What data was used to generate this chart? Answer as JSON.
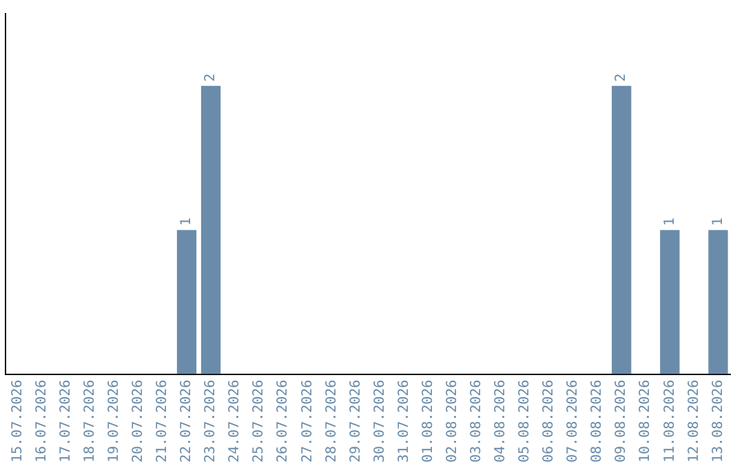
{
  "chart_data": {
    "type": "bar",
    "categories": [
      "15.07.2026",
      "16.07.2026",
      "17.07.2026",
      "18.07.2026",
      "19.07.2026",
      "20.07.2026",
      "21.07.2026",
      "22.07.2026",
      "23.07.2026",
      "24.07.2026",
      "25.07.2026",
      "26.07.2026",
      "27.07.2026",
      "28.07.2026",
      "29.07.2026",
      "30.07.2026",
      "31.07.2026",
      "01.08.2026",
      "02.08.2026",
      "03.08.2026",
      "04.08.2026",
      "05.08.2026",
      "06.08.2026",
      "07.08.2026",
      "08.08.2026",
      "09.08.2026",
      "10.08.2026",
      "11.08.2026",
      "12.08.2026",
      "13.08.2026"
    ],
    "values": [
      0,
      0,
      0,
      0,
      0,
      0,
      0,
      1,
      2,
      0,
      0,
      0,
      0,
      0,
      0,
      0,
      0,
      0,
      0,
      0,
      0,
      0,
      0,
      0,
      0,
      2,
      0,
      1,
      0,
      1
    ],
    "value_labels": [
      null,
      null,
      null,
      null,
      null,
      null,
      null,
      "1",
      "2",
      null,
      null,
      null,
      null,
      null,
      null,
      null,
      null,
      null,
      null,
      null,
      null,
      null,
      null,
      null,
      null,
      "2",
      null,
      "1",
      null,
      "1"
    ],
    "color": "#6a8caa",
    "grid": false,
    "legend": false,
    "tick_labels": "x"
  }
}
